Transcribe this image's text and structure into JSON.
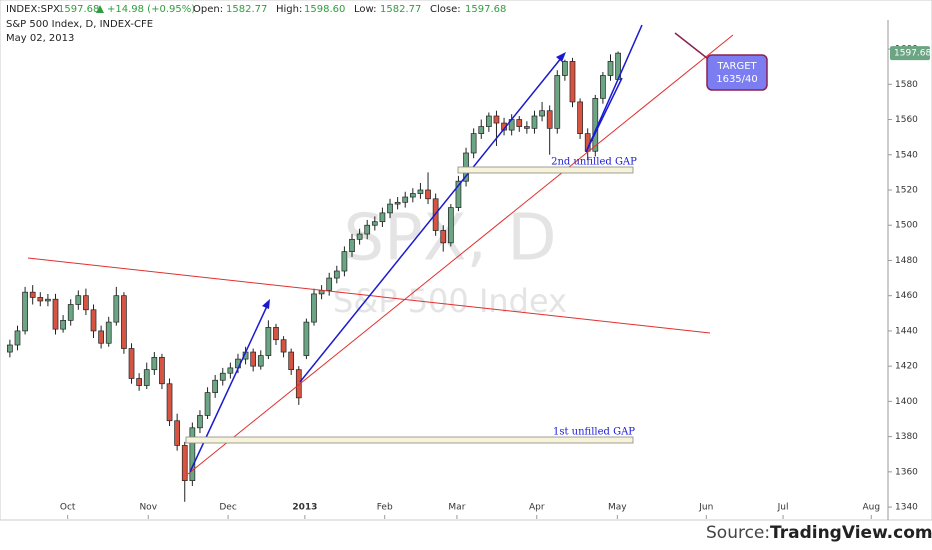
{
  "header": {
    "symbol": "INDEX:SPX",
    "last": "1597.68",
    "change": "+14.98 (+0.95%)",
    "open_label": "Open:",
    "open": "1582.77",
    "high_label": "High:",
    "high": "1598.60",
    "low_label": "Low:",
    "low": "1582.77",
    "close_label": "Close:",
    "close": "1597.68",
    "description": "S&P 500 Index, D, INDEX-CFE",
    "date": "May 02, 2013"
  },
  "watermark": {
    "symbol": "SPX, D",
    "name": "S&P 500 Index"
  },
  "annotations": {
    "gap2": "2nd unfilled GAP",
    "gap1": "1st unfilled GAP",
    "target_line1": "TARGET",
    "target_line2": "1635/40"
  },
  "footer": {
    "source_label": "Source:",
    "source_name": "TradingView.com"
  },
  "chart_data": {
    "type": "candlestick",
    "up_color": "#6ba583",
    "down_color": "#d75442",
    "xlim": [
      -1.3,
      115.5
    ],
    "xticks": [
      {
        "value": 7.6,
        "label": "Oct"
      },
      {
        "value": 18.2,
        "label": "Nov"
      },
      {
        "value": 28.7,
        "label": "Dec"
      },
      {
        "value": 38.8,
        "label": "2013"
      },
      {
        "value": 49.3,
        "label": "Feb"
      },
      {
        "value": 58.8,
        "label": "Mar"
      },
      {
        "value": 69.3,
        "label": "Apr"
      },
      {
        "value": 79.9,
        "label": "May"
      },
      {
        "value": 91.6,
        "label": "Jun"
      },
      {
        "value": 101.7,
        "label": "Jul"
      },
      {
        "value": 113.3,
        "label": "Aug"
      }
    ],
    "ylim": [
      1335.5,
      1616.5
    ],
    "yticks": [
      1340,
      1360,
      1380,
      1400,
      1420,
      1440,
      1460,
      1480,
      1500,
      1520,
      1540,
      1560,
      1580,
      1600
    ],
    "last_price": {
      "value": 1597.68,
      "label": "1597.68"
    },
    "series": [
      {
        "name": "SPX",
        "open": [
          1428,
          1432,
          1440,
          1462,
          1459,
          1457,
          1458,
          1441,
          1446,
          1455,
          1460,
          1452,
          1440,
          1433,
          1445,
          1460,
          1430,
          1413,
          1409,
          1418,
          1425,
          1410,
          1389,
          1375,
          1355,
          1385,
          1392,
          1405,
          1412,
          1416,
          1419,
          1424,
          1428,
          1420,
          1426,
          1442,
          1435,
          1428,
          1418,
          1426,
          1445,
          1461,
          1463,
          1470,
          1474,
          1485,
          1492,
          1495,
          1500,
          1502,
          1507,
          1512,
          1513,
          1516,
          1518,
          1520,
          1515,
          1497,
          1490,
          1510,
          1525,
          1541,
          1552,
          1556,
          1562,
          1558,
          1554,
          1560,
          1556,
          1555,
          1562,
          1565,
          1555,
          1585,
          1593,
          1570,
          1552,
          1542,
          1572,
          1585,
          1582.77
        ],
        "high": [
          1435,
          1443,
          1465,
          1466,
          1462,
          1461,
          1461,
          1449,
          1458,
          1463,
          1464,
          1455,
          1443,
          1448,
          1465,
          1462,
          1433,
          1416,
          1422,
          1428,
          1427,
          1413,
          1393,
          1377,
          1388,
          1395,
          1408,
          1415,
          1419,
          1422,
          1427,
          1431,
          1430,
          1429,
          1446,
          1444,
          1437,
          1430,
          1420,
          1447,
          1464,
          1466,
          1473,
          1477,
          1488,
          1495,
          1498,
          1503,
          1505,
          1510,
          1515,
          1516,
          1519,
          1521,
          1524,
          1530,
          1518,
          1500,
          1512,
          1528,
          1544,
          1555,
          1560,
          1564,
          1565,
          1561,
          1563,
          1562,
          1559,
          1565,
          1570,
          1568,
          1588,
          1594,
          1595,
          1572,
          1555,
          1574,
          1587,
          1597,
          1598.6
        ],
        "low": [
          1425,
          1429,
          1438,
          1455,
          1454,
          1454,
          1438,
          1439,
          1443,
          1452,
          1449,
          1436,
          1430,
          1431,
          1443,
          1427,
          1410,
          1406,
          1407,
          1415,
          1407,
          1386,
          1372,
          1343,
          1352,
          1382,
          1390,
          1402,
          1409,
          1413,
          1416,
          1421,
          1417,
          1418,
          1424,
          1432,
          1425,
          1415,
          1398,
          1424,
          1443,
          1458,
          1460,
          1467,
          1471,
          1482,
          1489,
          1492,
          1497,
          1499,
          1504,
          1509,
          1510,
          1513,
          1515,
          1512,
          1494,
          1485,
          1488,
          1508,
          1522,
          1538,
          1549,
          1553,
          1545,
          1551,
          1551,
          1553,
          1552,
          1552,
          1559,
          1540,
          1552,
          1582,
          1567,
          1549,
          1537,
          1539,
          1569,
          1582,
          1582.77
        ],
        "close": [
          1432,
          1440,
          1462,
          1459,
          1457,
          1458,
          1441,
          1446,
          1455,
          1460,
          1452,
          1440,
          1433,
          1445,
          1460,
          1430,
          1413,
          1409,
          1418,
          1425,
          1410,
          1389,
          1375,
          1355,
          1385,
          1392,
          1405,
          1412,
          1416,
          1419,
          1424,
          1428,
          1420,
          1426,
          1442,
          1435,
          1428,
          1418,
          1402,
          1445,
          1461,
          1463,
          1470,
          1474,
          1485,
          1492,
          1495,
          1500,
          1502,
          1507,
          1512,
          1513,
          1516,
          1518,
          1520,
          1515,
          1497,
          1490,
          1510,
          1525,
          1541,
          1552,
          1556,
          1562,
          1558,
          1554,
          1560,
          1556,
          1555,
          1562,
          1565,
          1555,
          1585,
          1593,
          1570,
          1552,
          1542,
          1572,
          1585,
          1593,
          1597.68
        ]
      }
    ]
  }
}
